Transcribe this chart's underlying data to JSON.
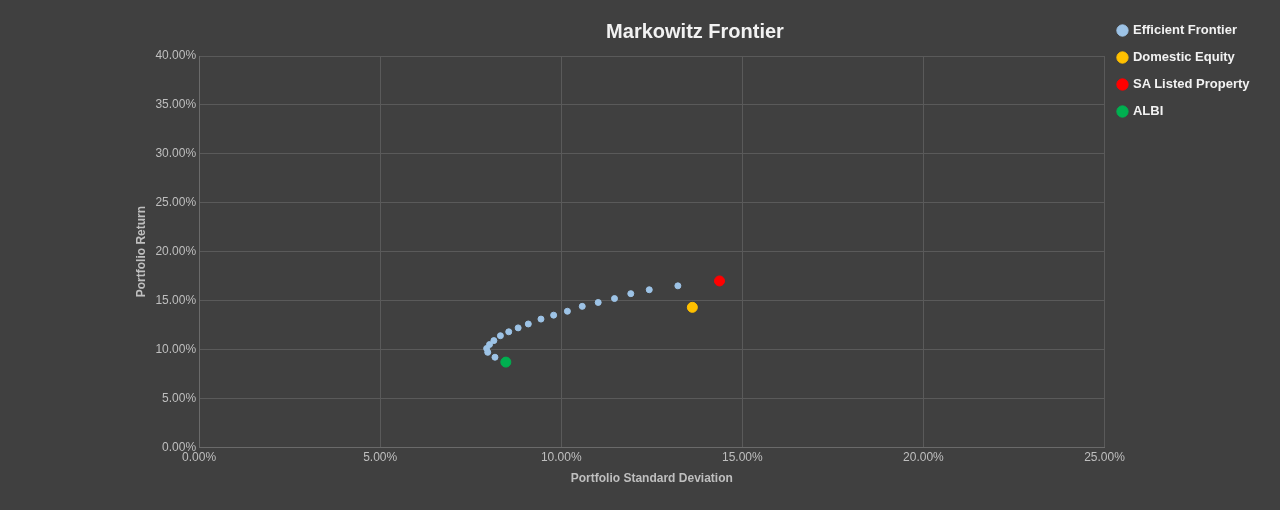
{
  "chart_data": {
    "type": "scatter",
    "title": "Markowitz Frontier",
    "xlabel": "Portfolio Standard Deviation",
    "ylabel": "Portfolio Return",
    "xlim": [
      0,
      25
    ],
    "ylim": [
      0,
      40
    ],
    "xticks": [
      {
        "value": 0,
        "label": "0.00%"
      },
      {
        "value": 5,
        "label": "5.00%"
      },
      {
        "value": 10,
        "label": "10.00%"
      },
      {
        "value": 15,
        "label": "15.00%"
      },
      {
        "value": 20,
        "label": "20.00%"
      },
      {
        "value": 25,
        "label": "25.00%"
      }
    ],
    "yticks": [
      {
        "value": 0,
        "label": "0.00%"
      },
      {
        "value": 5,
        "label": "5.00%"
      },
      {
        "value": 10,
        "label": "10.00%"
      },
      {
        "value": 15,
        "label": "15.00%"
      },
      {
        "value": 20,
        "label": "20.00%"
      },
      {
        "value": 25,
        "label": "25.00%"
      },
      {
        "value": 30,
        "label": "30.00%"
      },
      {
        "value": 35,
        "label": "35.00%"
      },
      {
        "value": 40,
        "label": "40.00%"
      }
    ],
    "grid": true,
    "legend": "right",
    "marker": "circle",
    "series": [
      {
        "name": "Efficient Frontier",
        "color": "#9dc3e6",
        "x": [
          8.17,
          7.97,
          7.94,
          8.02,
          8.14,
          8.32,
          8.55,
          8.81,
          9.09,
          9.44,
          9.79,
          10.17,
          10.58,
          11.02,
          11.47,
          11.92,
          12.43,
          13.22
        ],
        "values": [
          9.2,
          9.7,
          10.1,
          10.5,
          10.9,
          11.4,
          11.8,
          12.2,
          12.6,
          13.1,
          13.5,
          13.9,
          14.4,
          14.8,
          15.2,
          15.7,
          16.1,
          16.5
        ]
      },
      {
        "name": "Domestic Equity",
        "color": "#ffc000",
        "x": [
          13.62
        ],
        "values": [
          14.3
        ]
      },
      {
        "name": "SA Listed Property",
        "color": "#ff0000",
        "x": [
          14.37
        ],
        "values": [
          17
        ]
      },
      {
        "name": "ALBI",
        "color": "#00b050",
        "x": [
          8.47
        ],
        "values": [
          8.7
        ]
      }
    ]
  }
}
